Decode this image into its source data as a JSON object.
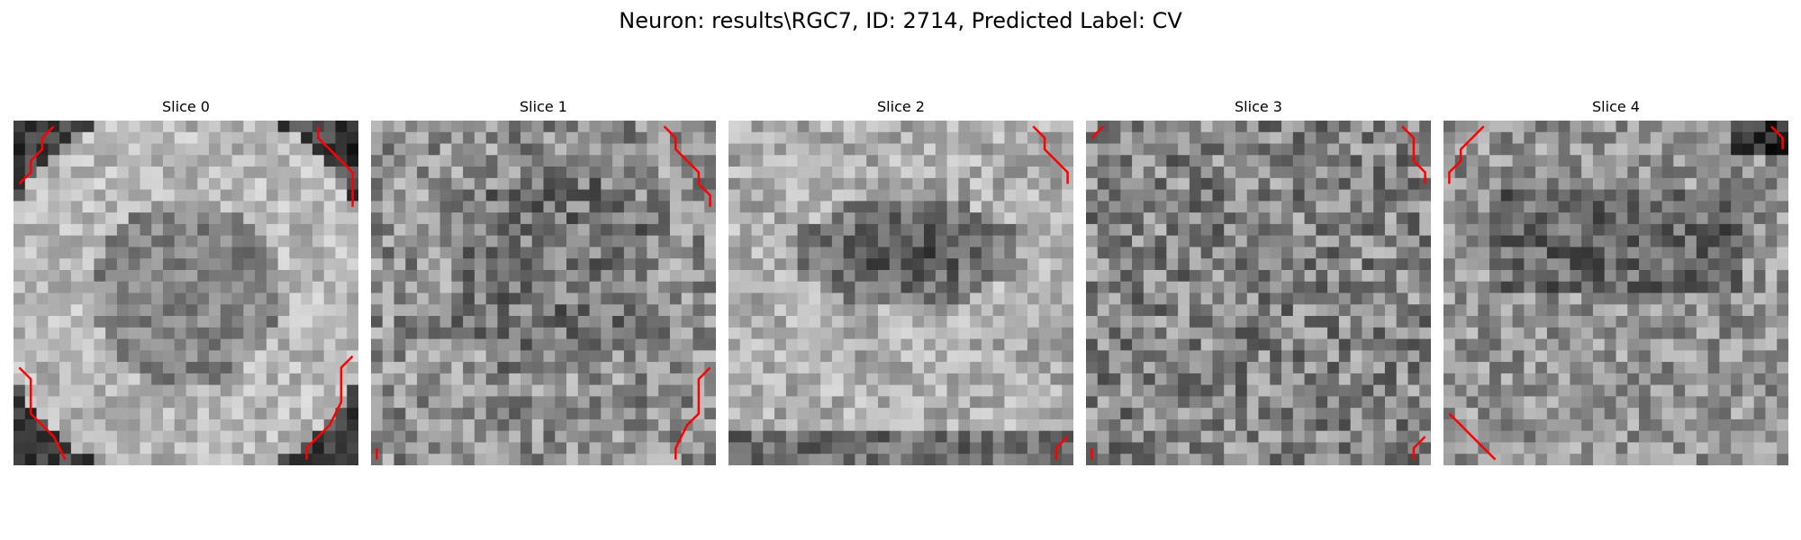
{
  "suptitle": "Neuron: results\\RGC7, ID: 2714, Predicted Label: CV",
  "colors": {
    "contour": "#ff0000",
    "background": "#ffffff"
  },
  "chart_data": {
    "type": "heatmap",
    "colormap": "gray",
    "grid_size": [
      30,
      30
    ],
    "axes_visible": false,
    "contour_color": "red",
    "panels": [
      {
        "title": "Slice 0",
        "pattern": "bright disc with darker centre region, dark corners",
        "contours": [
          [
            [
              3,
              0
            ],
            [
              2,
              1
            ],
            [
              2,
              2
            ],
            [
              1,
              3
            ],
            [
              1,
              4
            ],
            [
              0,
              5
            ]
          ],
          [
            [
              26,
              0
            ],
            [
              26,
              1
            ],
            [
              27,
              2
            ],
            [
              28,
              3
            ],
            [
              29,
              4
            ],
            [
              29,
              5
            ],
            [
              29,
              7
            ]
          ],
          [
            [
              0,
              21
            ],
            [
              1,
              22
            ],
            [
              1,
              25
            ],
            [
              2,
              26
            ],
            [
              3,
              27
            ],
            [
              4,
              29
            ]
          ],
          [
            [
              29,
              20
            ],
            [
              28,
              21
            ],
            [
              28,
              24
            ],
            [
              27,
              26
            ],
            [
              26,
              27
            ],
            [
              25,
              28
            ],
            [
              25,
              29
            ]
          ]
        ]
      },
      {
        "title": "Slice 1",
        "pattern": "noisy mid-gray texture with darker centre",
        "contours": [
          [
            [
              25,
              0
            ],
            [
              26,
              1
            ],
            [
              26,
              2
            ],
            [
              27,
              3
            ],
            [
              28,
              4
            ],
            [
              28,
              5
            ],
            [
              29,
              6
            ],
            [
              29,
              7
            ]
          ],
          [
            [
              29,
              21
            ],
            [
              28,
              22
            ],
            [
              28,
              25
            ],
            [
              27,
              26
            ],
            [
              26,
              28
            ],
            [
              26,
              29
            ]
          ],
          [
            [
              0,
              29
            ],
            [
              0,
              28
            ]
          ]
        ]
      },
      {
        "title": "Slice 2",
        "pattern": "dark elliptical centre on lighter surround",
        "contours": [
          [
            [
              26,
              0
            ],
            [
              27,
              1
            ],
            [
              27,
              2
            ],
            [
              28,
              3
            ],
            [
              29,
              4
            ],
            [
              29,
              5
            ]
          ],
          [
            [
              29,
              27
            ],
            [
              28,
              28
            ],
            [
              28,
              29
            ]
          ]
        ]
      },
      {
        "title": "Slice 3",
        "pattern": "noisy mid-gray texture",
        "contours": [
          [
            [
              0,
              1
            ],
            [
              1,
              0
            ]
          ],
          [
            [
              27,
              0
            ],
            [
              28,
              1
            ],
            [
              28,
              3
            ],
            [
              29,
              4
            ],
            [
              29,
              5
            ]
          ],
          [
            [
              29,
              27
            ],
            [
              28,
              28
            ],
            [
              28,
              29
            ]
          ],
          [
            [
              0,
              29
            ],
            [
              0,
              28
            ]
          ]
        ]
      },
      {
        "title": "Slice 4",
        "pattern": "textured gray with dark band near the top",
        "contours": [
          [
            [
              3,
              0
            ],
            [
              2,
              1
            ],
            [
              1,
              2
            ],
            [
              1,
              3
            ],
            [
              0,
              4
            ],
            [
              0,
              5
            ]
          ],
          [
            [
              28,
              0
            ],
            [
              29,
              1
            ],
            [
              29,
              2
            ]
          ],
          [
            [
              0,
              25
            ],
            [
              1,
              26
            ],
            [
              2,
              27
            ],
            [
              3,
              28
            ],
            [
              4,
              29
            ]
          ]
        ]
      }
    ]
  }
}
